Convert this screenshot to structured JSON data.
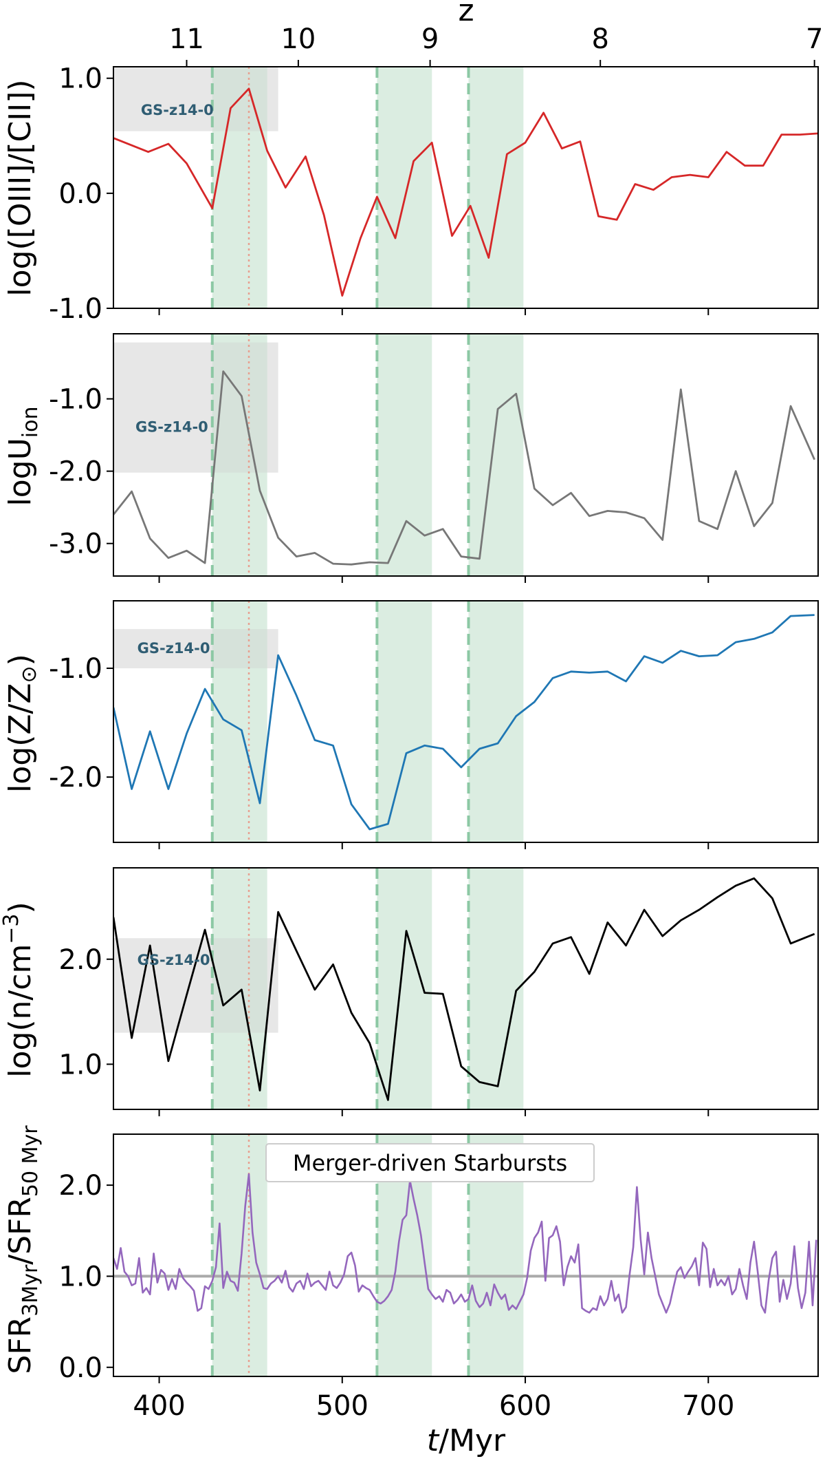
{
  "chart_data": {
    "type": "line",
    "xlabel": "t/Myr",
    "xlabel_main": "t",
    "xlabel_unit": "/Myr",
    "xlim": [
      375,
      760
    ],
    "x_ticks": [
      400,
      500,
      600,
      700
    ],
    "top_axis": {
      "label": "z",
      "ticks": [
        {
          "t": 415,
          "label": "11"
        },
        {
          "t": 476,
          "label": "10"
        },
        {
          "t": 548,
          "label": "9"
        },
        {
          "t": 641,
          "label": "8"
        },
        {
          "t": 758,
          "label": "7"
        }
      ]
    },
    "shaded_windows": [
      [
        429,
        459
      ],
      [
        519,
        549
      ],
      [
        569,
        599
      ]
    ],
    "dashed_lines": [
      429,
      519,
      569
    ],
    "dotted_line": 449,
    "colors": {
      "shade": "#d9ecdf",
      "dashed": "#8cc8a4",
      "dotted": "#e8a090",
      "ref_box": "#e6e6e6",
      "ref_text": "#2f5d73",
      "oiii_cii": "#d62728",
      "uion": "#777777",
      "metal": "#1f77b4",
      "density": "#000000",
      "sfr": "#9467bd",
      "unity": "#aaaaaa"
    },
    "ref_label": "GS-z14-0",
    "panels": [
      {
        "ylabel": "log([OIII]/[CII])",
        "ylim": [
          -1.0,
          1.1
        ],
        "y_ticks": [
          1.0,
          0.0,
          -1.0
        ],
        "y_tick_labels": [
          "1.0",
          "0.0",
          "-1.0"
        ],
        "ref_box": {
          "t": [
            375,
            465
          ],
          "y": [
            0.54,
            1.1
          ]
        },
        "ref_label_pos": {
          "t": 390,
          "y": 0.73
        },
        "color_key": "oiii_cii",
        "x": [
          375,
          394,
          405,
          415,
          429,
          439,
          449,
          459,
          469,
          480,
          490,
          500,
          510,
          519,
          529,
          539,
          549,
          560,
          570,
          580,
          590,
          600,
          610,
          620,
          630,
          640,
          650,
          660,
          670,
          680,
          690,
          700,
          710,
          720,
          730,
          740,
          750,
          760
        ],
        "values": [
          0.48,
          0.36,
          0.43,
          0.26,
          -0.13,
          0.74,
          0.91,
          0.37,
          0.05,
          0.32,
          -0.19,
          -0.89,
          -0.39,
          -0.03,
          -0.39,
          0.28,
          0.44,
          -0.37,
          -0.11,
          -0.56,
          0.34,
          0.44,
          0.7,
          0.39,
          0.45,
          -0.2,
          -0.23,
          0.08,
          0.03,
          0.14,
          0.16,
          0.14,
          0.36,
          0.24,
          0.24,
          0.51,
          0.51,
          0.52
        ]
      },
      {
        "ylabel_main": "logU",
        "ylabel_sub": "ion",
        "ylim": [
          -3.45,
          -0.1
        ],
        "y_ticks": [
          -1.0,
          -2.0,
          -3.0
        ],
        "y_tick_labels": [
          "-1.0",
          "-2.0",
          "-3.0"
        ],
        "ref_box": {
          "t": [
            375,
            465
          ],
          "y": [
            -2.02,
            -0.22
          ]
        },
        "ref_label_pos": {
          "t": 387,
          "y": -1.38
        },
        "color_key": "uion",
        "x": [
          375,
          385,
          395,
          405,
          415,
          425,
          435,
          445,
          455,
          465,
          475,
          485,
          495,
          505,
          515,
          525,
          535,
          545,
          555,
          565,
          575,
          585,
          595,
          605,
          615,
          625,
          635,
          645,
          655,
          665,
          675,
          685,
          695,
          705,
          715,
          725,
          735,
          745,
          758
        ],
        "values": [
          -2.6,
          -2.28,
          -2.93,
          -3.2,
          -3.1,
          -3.27,
          -0.62,
          -0.96,
          -2.27,
          -2.92,
          -3.18,
          -3.13,
          -3.28,
          -3.29,
          -3.26,
          -3.27,
          -2.69,
          -2.89,
          -2.8,
          -3.18,
          -3.21,
          -1.14,
          -0.93,
          -2.24,
          -2.47,
          -2.3,
          -2.62,
          -2.55,
          -2.57,
          -2.65,
          -2.95,
          -0.87,
          -2.69,
          -2.8,
          -2.0,
          -2.76,
          -2.44,
          -1.1,
          -1.84
        ]
      },
      {
        "ylabel_main": "log(Z/Z",
        "ylabel_sun": "⊙",
        "ylabel_close": ")",
        "ylim": [
          -2.6,
          -0.38
        ],
        "y_ticks": [
          -1.0,
          -2.0
        ],
        "y_tick_labels": [
          "-1.0",
          "-2.0"
        ],
        "ref_box": {
          "t": [
            375,
            465
          ],
          "y": [
            -1.0,
            -0.64
          ]
        },
        "ref_label_pos": {
          "t": 388,
          "y": -0.81
        },
        "color_key": "metal",
        "x": [
          375,
          385,
          395,
          405,
          415,
          425,
          435,
          445,
          455,
          465,
          475,
          485,
          495,
          505,
          515,
          525,
          535,
          545,
          555,
          565,
          575,
          585,
          595,
          605,
          615,
          625,
          635,
          645,
          655,
          665,
          675,
          685,
          695,
          705,
          715,
          725,
          735,
          745,
          758
        ],
        "values": [
          -1.36,
          -2.11,
          -1.58,
          -2.11,
          -1.6,
          -1.19,
          -1.47,
          -1.57,
          -2.24,
          -0.88,
          -1.25,
          -1.66,
          -1.71,
          -2.25,
          -2.48,
          -2.43,
          -1.78,
          -1.71,
          -1.74,
          -1.91,
          -1.74,
          -1.69,
          -1.44,
          -1.31,
          -1.09,
          -1.03,
          -1.04,
          -1.03,
          -1.12,
          -0.89,
          -0.95,
          -0.84,
          -0.89,
          -0.88,
          -0.76,
          -0.73,
          -0.67,
          -0.52,
          -0.51
        ]
      },
      {
        "ylabel_main": "log(n/cm",
        "ylabel_sup": "−3",
        "ylabel_close": ")",
        "ylim": [
          0.57,
          2.87
        ],
        "y_ticks": [
          2.0,
          1.0
        ],
        "y_tick_labels": [
          "2.0",
          "1.0"
        ],
        "ref_box": {
          "t": [
            375,
            465
          ],
          "y": [
            1.3,
            2.2
          ]
        },
        "ref_label_pos": {
          "t": 388,
          "y": 2.0
        },
        "color_key": "density",
        "x": [
          375,
          385,
          395,
          405,
          415,
          425,
          435,
          445,
          455,
          465,
          475,
          485,
          495,
          505,
          515,
          525,
          535,
          545,
          555,
          565,
          575,
          585,
          595,
          605,
          615,
          625,
          635,
          645,
          655,
          665,
          675,
          685,
          695,
          705,
          715,
          725,
          735,
          745,
          758
        ],
        "values": [
          2.4,
          1.25,
          2.13,
          1.03,
          1.66,
          2.28,
          1.56,
          1.71,
          0.75,
          2.45,
          2.08,
          1.71,
          1.95,
          1.49,
          1.2,
          0.66,
          2.27,
          1.68,
          1.67,
          0.98,
          0.83,
          0.79,
          1.7,
          1.88,
          2.15,
          2.21,
          1.86,
          2.35,
          2.13,
          2.47,
          2.22,
          2.37,
          2.47,
          2.59,
          2.7,
          2.77,
          2.58,
          2.15,
          2.24
        ]
      },
      {
        "ylabel_main1": "SFR",
        "ylabel_sub1": "3Myr",
        "ylabel_slash": "/SFR",
        "ylabel_sub2": "50 Myr",
        "ylim": [
          -0.1,
          2.56
        ],
        "y_ticks": [
          2.0,
          1.0,
          0.0
        ],
        "y_tick_labels": [
          "2.0",
          "1.0",
          "0.0"
        ],
        "unity_line": 1.0,
        "legend_label": "Merger-driven Starbursts",
        "color_key": "sfr",
        "x": [
          375,
          377,
          379,
          381,
          383,
          385,
          387,
          389,
          391,
          393,
          395,
          397,
          399,
          401,
          403,
          405,
          407,
          409,
          411,
          413,
          415,
          417,
          419,
          421,
          423,
          425,
          427,
          429,
          431,
          433,
          435,
          437,
          439,
          441,
          443,
          445,
          447,
          449,
          451,
          453,
          455,
          457,
          459,
          461,
          463,
          465,
          467,
          469,
          471,
          473,
          475,
          477,
          479,
          481,
          483,
          485,
          487,
          489,
          491,
          493,
          495,
          497,
          499,
          501,
          503,
          505,
          507,
          509,
          511,
          513,
          515,
          517,
          519,
          521,
          523,
          525,
          527,
          529,
          531,
          533,
          535,
          537,
          539,
          541,
          543,
          545,
          547,
          549,
          551,
          553,
          555,
          557,
          559,
          561,
          563,
          565,
          567,
          569,
          571,
          573,
          575,
          577,
          579,
          581,
          583,
          585,
          587,
          589,
          591,
          593,
          595,
          597,
          599,
          601,
          603,
          605,
          607,
          609,
          611,
          613,
          615,
          617,
          619,
          621,
          623,
          625,
          627,
          629,
          631,
          633,
          635,
          637,
          639,
          641,
          643,
          645,
          647,
          649,
          651,
          653,
          655,
          657,
          659,
          661,
          663,
          665,
          667,
          669,
          671,
          673,
          675,
          677,
          679,
          681,
          683,
          685,
          687,
          689,
          691,
          693,
          695,
          697,
          699,
          701,
          703,
          705,
          707,
          709,
          711,
          713,
          715,
          717,
          719,
          721,
          723,
          725,
          727,
          729,
          731,
          733,
          735,
          737,
          739,
          741,
          743,
          745,
          747,
          749,
          751,
          753,
          755,
          757,
          759
        ],
        "values": [
          1.2,
          1.08,
          1.31,
          1.05,
          1.0,
          0.9,
          0.92,
          1.2,
          0.82,
          0.87,
          0.8,
          1.25,
          0.93,
          1.07,
          1.03,
          0.85,
          0.97,
          0.86,
          1.08,
          0.98,
          0.93,
          0.89,
          0.84,
          0.62,
          0.65,
          0.89,
          0.86,
          0.95,
          1.1,
          1.58,
          0.87,
          1.05,
          0.95,
          0.93,
          0.84,
          1.25,
          1.77,
          2.12,
          1.48,
          1.15,
          1.02,
          0.87,
          0.86,
          0.92,
          0.95,
          1.0,
          0.93,
          1.06,
          0.88,
          0.83,
          0.92,
          0.95,
          0.86,
          1.03,
          0.89,
          0.93,
          0.95,
          0.9,
          0.85,
          1.05,
          0.9,
          0.87,
          0.93,
          1.02,
          1.22,
          1.26,
          1.12,
          0.83,
          0.9,
          0.87,
          0.85,
          0.78,
          0.72,
          0.7,
          0.73,
          0.78,
          0.85,
          1.05,
          1.38,
          1.62,
          1.67,
          2.05,
          1.85,
          1.67,
          1.45,
          1.15,
          0.86,
          0.8,
          0.75,
          0.78,
          0.72,
          0.85,
          0.82,
          0.7,
          0.74,
          0.8,
          0.72,
          0.75,
          0.9,
          0.73,
          0.66,
          0.7,
          0.82,
          0.68,
          0.91,
          0.82,
          0.75,
          0.8,
          0.63,
          0.68,
          0.64,
          0.72,
          0.8,
          0.98,
          1.28,
          1.42,
          1.48,
          1.6,
          0.95,
          1.42,
          1.45,
          1.55,
          1.38,
          0.9,
          1.1,
          1.22,
          1.15,
          1.35,
          0.65,
          0.62,
          0.6,
          0.65,
          0.63,
          0.78,
          0.68,
          0.75,
          0.95,
          0.73,
          0.8,
          0.6,
          0.66,
          1.02,
          1.32,
          1.98,
          1.41,
          1.02,
          1.48,
          1.2,
          1.0,
          0.8,
          0.7,
          0.6,
          0.7,
          0.88,
          1.05,
          1.1,
          0.98,
          1.05,
          1.11,
          1.2,
          0.9,
          1.37,
          1.3,
          0.88,
          1.08,
          0.9,
          0.96,
          0.9,
          1.0,
          0.8,
          0.86,
          1.08,
          0.9,
          0.75,
          1.15,
          1.38,
          1.05,
          0.68,
          0.6,
          0.96,
          1.2,
          1.27,
          0.72,
          0.96,
          0.75,
          0.92,
          1.33,
          0.87,
          0.65,
          0.82,
          1.38,
          0.68,
          1.4
        ]
      }
    ]
  }
}
